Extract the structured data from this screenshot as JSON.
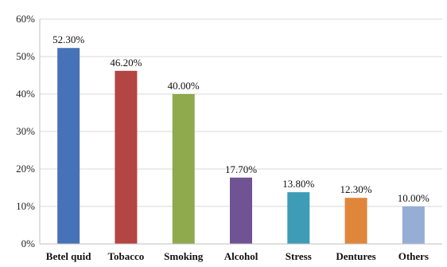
{
  "chart_data": {
    "type": "bar",
    "title": "",
    "xlabel": "",
    "ylabel": "",
    "categories": [
      "Betel quid",
      "Tobacco",
      "Smoking",
      "Alcohol",
      "Stress",
      "Dentures",
      "Others"
    ],
    "values": [
      52.3,
      46.2,
      40.0,
      17.7,
      13.8,
      12.3,
      10.0
    ],
    "data_labels": [
      "52.30%",
      "46.20%",
      "40.00%",
      "17.70%",
      "13.80%",
      "12.30%",
      "10.00%"
    ],
    "ylim": [
      0,
      60
    ],
    "yticks": [
      0,
      10,
      20,
      30,
      40,
      50,
      60
    ],
    "ytick_labels": [
      "0%",
      "10%",
      "20%",
      "30%",
      "40%",
      "50%",
      "60%"
    ],
    "bar_colors": [
      "#4673b8",
      "#b34542",
      "#8eaa4c",
      "#6f5392",
      "#3e9cb6",
      "#e0863b",
      "#96aed6"
    ],
    "grid": true,
    "legend": "none"
  }
}
